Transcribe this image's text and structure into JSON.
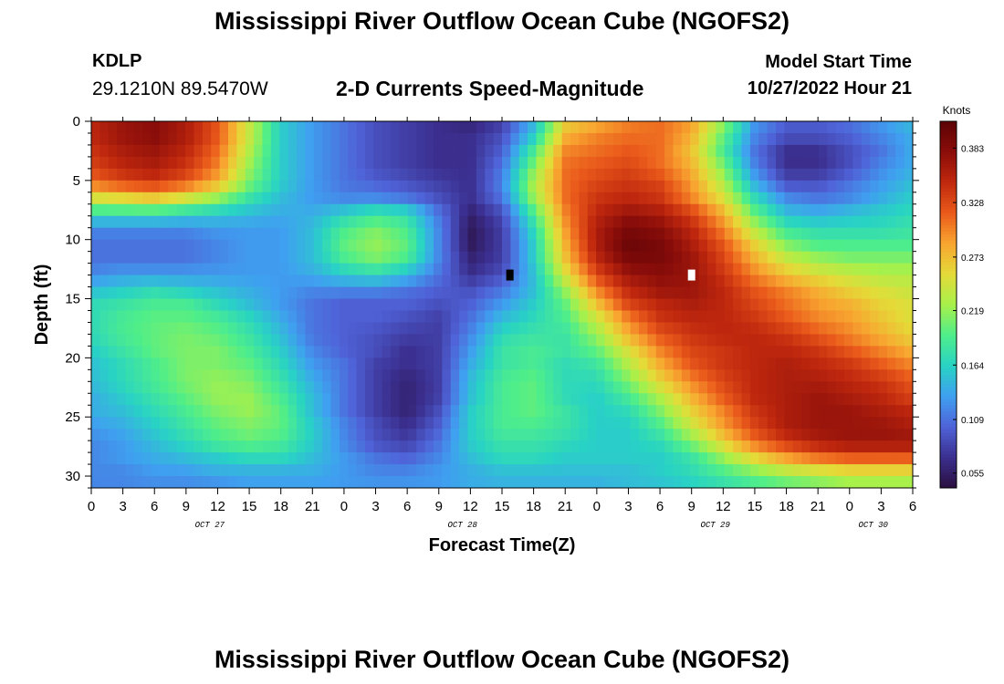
{
  "header": {
    "title": "Mississippi River Outflow Ocean Cube (NGOFS2)",
    "station": "KDLP",
    "coords": "29.1210N  89.5470W",
    "subtitle": "2-D Currents Speed-Magnitude",
    "model_start_label": "Model Start Time",
    "model_start_value": "10/27/2022 Hour 21"
  },
  "footer": {
    "title": "Mississippi River Outflow Ocean Cube (NGOFS2)"
  },
  "chart_data": {
    "type": "heatmap",
    "xlabel": "Forecast Time(Z)",
    "ylabel": "Depth (ft)",
    "x_tick_labels": [
      "0",
      "3",
      "6",
      "9",
      "12",
      "15",
      "18",
      "21",
      "0",
      "3",
      "6",
      "9",
      "12",
      "15",
      "18",
      "21",
      "0",
      "3",
      "6",
      "9",
      "12",
      "15",
      "18",
      "21",
      "0",
      "3",
      "6"
    ],
    "date_labels": [
      {
        "label": "OCT 27",
        "at_tick": 3.75
      },
      {
        "label": "OCT 28",
        "at_tick": 11.75
      },
      {
        "label": "OCT 29",
        "at_tick": 19.75
      },
      {
        "label": "OCT 30",
        "at_tick": 24.75
      }
    ],
    "y_ticks": [
      0,
      5,
      10,
      15,
      20,
      25,
      30
    ],
    "ylim": [
      31,
      0
    ],
    "colorbar": {
      "title": "Knots",
      "ticks": [
        0.383,
        0.328,
        0.273,
        0.219,
        0.164,
        0.109,
        0.055
      ],
      "range": [
        0.04,
        0.41
      ],
      "colors": [
        "#2a0f3f",
        "#3b2f8f",
        "#4f63d8",
        "#3fa0f0",
        "#28d3c4",
        "#4fee8a",
        "#a8f04a",
        "#e4db38",
        "#f8a530",
        "#ea5a1b",
        "#c0280e",
        "#8a0d0a",
        "#5c0306"
      ]
    },
    "field": {
      "x_points": 27,
      "depth_points": 25,
      "z": [
        [
          0.35,
          0.37,
          0.38,
          0.36,
          0.32,
          0.24,
          0.16,
          0.13,
          0.11,
          0.09,
          0.08,
          0.07,
          0.06,
          0.08,
          0.14,
          0.26,
          0.28,
          0.3,
          0.31,
          0.29,
          0.22,
          0.13,
          0.1,
          0.1,
          0.11,
          0.13,
          0.15
        ],
        [
          0.35,
          0.37,
          0.38,
          0.36,
          0.32,
          0.24,
          0.16,
          0.13,
          0.11,
          0.09,
          0.08,
          0.07,
          0.07,
          0.09,
          0.16,
          0.28,
          0.3,
          0.31,
          0.31,
          0.28,
          0.2,
          0.12,
          0.09,
          0.09,
          0.1,
          0.12,
          0.14
        ],
        [
          0.34,
          0.36,
          0.37,
          0.35,
          0.31,
          0.23,
          0.16,
          0.13,
          0.11,
          0.09,
          0.08,
          0.07,
          0.07,
          0.1,
          0.19,
          0.3,
          0.31,
          0.32,
          0.31,
          0.27,
          0.19,
          0.11,
          0.07,
          0.07,
          0.09,
          0.11,
          0.14
        ],
        [
          0.33,
          0.35,
          0.36,
          0.34,
          0.3,
          0.22,
          0.16,
          0.13,
          0.11,
          0.09,
          0.08,
          0.07,
          0.07,
          0.11,
          0.21,
          0.31,
          0.32,
          0.33,
          0.31,
          0.28,
          0.21,
          0.12,
          0.07,
          0.07,
          0.09,
          0.12,
          0.14
        ],
        [
          0.31,
          0.33,
          0.34,
          0.32,
          0.28,
          0.21,
          0.16,
          0.13,
          0.11,
          0.1,
          0.09,
          0.08,
          0.07,
          0.12,
          0.23,
          0.31,
          0.33,
          0.34,
          0.33,
          0.29,
          0.23,
          0.14,
          0.09,
          0.09,
          0.11,
          0.13,
          0.15
        ],
        [
          0.25,
          0.26,
          0.27,
          0.25,
          0.22,
          0.18,
          0.15,
          0.13,
          0.12,
          0.12,
          0.11,
          0.09,
          0.07,
          0.11,
          0.22,
          0.31,
          0.34,
          0.35,
          0.34,
          0.3,
          0.25,
          0.17,
          0.12,
          0.11,
          0.12,
          0.14,
          0.16
        ],
        [
          0.18,
          0.18,
          0.18,
          0.17,
          0.16,
          0.15,
          0.14,
          0.14,
          0.16,
          0.18,
          0.17,
          0.11,
          0.06,
          0.09,
          0.19,
          0.3,
          0.35,
          0.37,
          0.36,
          0.33,
          0.28,
          0.2,
          0.15,
          0.14,
          0.15,
          0.16,
          0.17
        ],
        [
          0.12,
          0.12,
          0.12,
          0.12,
          0.13,
          0.13,
          0.13,
          0.15,
          0.19,
          0.21,
          0.19,
          0.12,
          0.05,
          0.08,
          0.17,
          0.29,
          0.36,
          0.39,
          0.38,
          0.35,
          0.3,
          0.23,
          0.18,
          0.17,
          0.17,
          0.17,
          0.18
        ],
        [
          0.11,
          0.11,
          0.11,
          0.11,
          0.12,
          0.13,
          0.13,
          0.15,
          0.2,
          0.22,
          0.2,
          0.12,
          0.05,
          0.08,
          0.16,
          0.28,
          0.36,
          0.4,
          0.39,
          0.36,
          0.32,
          0.26,
          0.21,
          0.19,
          0.19,
          0.19,
          0.19
        ],
        [
          0.11,
          0.11,
          0.11,
          0.11,
          0.12,
          0.13,
          0.13,
          0.15,
          0.19,
          0.21,
          0.19,
          0.12,
          0.06,
          0.08,
          0.16,
          0.27,
          0.35,
          0.39,
          0.39,
          0.37,
          0.33,
          0.28,
          0.24,
          0.22,
          0.21,
          0.21,
          0.21
        ],
        [
          0.12,
          0.13,
          0.13,
          0.13,
          0.13,
          0.13,
          0.13,
          0.14,
          0.16,
          0.17,
          0.15,
          0.11,
          0.07,
          0.09,
          0.15,
          0.25,
          0.33,
          0.37,
          0.38,
          0.37,
          0.34,
          0.3,
          0.27,
          0.25,
          0.24,
          0.23,
          0.23
        ],
        [
          0.15,
          0.16,
          0.17,
          0.16,
          0.15,
          0.14,
          0.13,
          0.12,
          0.12,
          0.12,
          0.11,
          0.1,
          0.09,
          0.11,
          0.15,
          0.22,
          0.3,
          0.35,
          0.37,
          0.37,
          0.35,
          0.32,
          0.3,
          0.28,
          0.26,
          0.25,
          0.24
        ],
        [
          0.17,
          0.18,
          0.19,
          0.19,
          0.17,
          0.15,
          0.13,
          0.11,
          0.1,
          0.1,
          0.1,
          0.09,
          0.1,
          0.13,
          0.16,
          0.2,
          0.27,
          0.33,
          0.35,
          0.36,
          0.35,
          0.33,
          0.31,
          0.29,
          0.28,
          0.26,
          0.25
        ],
        [
          0.17,
          0.19,
          0.2,
          0.2,
          0.19,
          0.17,
          0.14,
          0.11,
          0.1,
          0.1,
          0.09,
          0.08,
          0.11,
          0.15,
          0.17,
          0.19,
          0.24,
          0.3,
          0.34,
          0.35,
          0.35,
          0.34,
          0.32,
          0.3,
          0.29,
          0.27,
          0.25
        ],
        [
          0.17,
          0.19,
          0.2,
          0.21,
          0.2,
          0.18,
          0.15,
          0.11,
          0.1,
          0.09,
          0.08,
          0.08,
          0.12,
          0.17,
          0.18,
          0.18,
          0.22,
          0.28,
          0.32,
          0.34,
          0.35,
          0.35,
          0.34,
          0.32,
          0.3,
          0.28,
          0.26
        ],
        [
          0.16,
          0.18,
          0.2,
          0.21,
          0.21,
          0.19,
          0.16,
          0.12,
          0.1,
          0.09,
          0.07,
          0.08,
          0.13,
          0.18,
          0.19,
          0.18,
          0.2,
          0.25,
          0.3,
          0.33,
          0.34,
          0.35,
          0.35,
          0.34,
          0.32,
          0.3,
          0.28
        ],
        [
          0.15,
          0.17,
          0.19,
          0.21,
          0.21,
          0.2,
          0.17,
          0.13,
          0.11,
          0.08,
          0.07,
          0.08,
          0.14,
          0.18,
          0.19,
          0.17,
          0.18,
          0.23,
          0.28,
          0.32,
          0.34,
          0.35,
          0.36,
          0.35,
          0.34,
          0.32,
          0.3
        ],
        [
          0.15,
          0.17,
          0.19,
          0.21,
          0.22,
          0.21,
          0.18,
          0.14,
          0.11,
          0.08,
          0.06,
          0.08,
          0.15,
          0.19,
          0.2,
          0.17,
          0.17,
          0.21,
          0.26,
          0.3,
          0.33,
          0.35,
          0.36,
          0.36,
          0.35,
          0.34,
          0.32
        ],
        [
          0.14,
          0.16,
          0.18,
          0.2,
          0.22,
          0.22,
          0.19,
          0.15,
          0.11,
          0.08,
          0.06,
          0.08,
          0.15,
          0.19,
          0.2,
          0.17,
          0.16,
          0.19,
          0.23,
          0.28,
          0.32,
          0.35,
          0.36,
          0.37,
          0.36,
          0.35,
          0.33
        ],
        [
          0.14,
          0.15,
          0.17,
          0.19,
          0.21,
          0.22,
          0.2,
          0.15,
          0.11,
          0.08,
          0.06,
          0.09,
          0.16,
          0.19,
          0.2,
          0.18,
          0.16,
          0.17,
          0.21,
          0.26,
          0.3,
          0.34,
          0.36,
          0.37,
          0.37,
          0.36,
          0.35
        ],
        [
          0.13,
          0.14,
          0.16,
          0.18,
          0.2,
          0.21,
          0.2,
          0.16,
          0.12,
          0.09,
          0.07,
          0.1,
          0.16,
          0.19,
          0.19,
          0.18,
          0.16,
          0.16,
          0.19,
          0.24,
          0.29,
          0.33,
          0.36,
          0.37,
          0.37,
          0.37,
          0.36
        ],
        [
          0.12,
          0.13,
          0.15,
          0.17,
          0.19,
          0.2,
          0.19,
          0.16,
          0.12,
          0.09,
          0.08,
          0.11,
          0.16,
          0.18,
          0.18,
          0.17,
          0.16,
          0.16,
          0.17,
          0.21,
          0.26,
          0.31,
          0.34,
          0.36,
          0.37,
          0.37,
          0.37
        ],
        [
          0.12,
          0.13,
          0.14,
          0.15,
          0.16,
          0.17,
          0.17,
          0.15,
          0.13,
          0.11,
          0.1,
          0.12,
          0.15,
          0.17,
          0.17,
          0.16,
          0.16,
          0.16,
          0.16,
          0.18,
          0.22,
          0.26,
          0.29,
          0.31,
          0.32,
          0.32,
          0.32
        ],
        [
          0.12,
          0.12,
          0.13,
          0.13,
          0.14,
          0.14,
          0.14,
          0.14,
          0.13,
          0.12,
          0.12,
          0.13,
          0.14,
          0.15,
          0.15,
          0.15,
          0.15,
          0.15,
          0.16,
          0.17,
          0.19,
          0.21,
          0.23,
          0.24,
          0.25,
          0.25,
          0.25
        ],
        [
          0.12,
          0.12,
          0.12,
          0.12,
          0.12,
          0.13,
          0.13,
          0.13,
          0.13,
          0.13,
          0.13,
          0.13,
          0.14,
          0.14,
          0.14,
          0.14,
          0.14,
          0.15,
          0.15,
          0.16,
          0.17,
          0.18,
          0.19,
          0.2,
          0.21,
          0.21,
          0.21
        ]
      ]
    },
    "markers": [
      {
        "name": "min",
        "x_tick_index": 13.25,
        "depth": 13,
        "color": "#000000"
      },
      {
        "name": "max",
        "x_tick_index": 19.0,
        "depth": 13,
        "color": "#ffffff"
      }
    ]
  }
}
